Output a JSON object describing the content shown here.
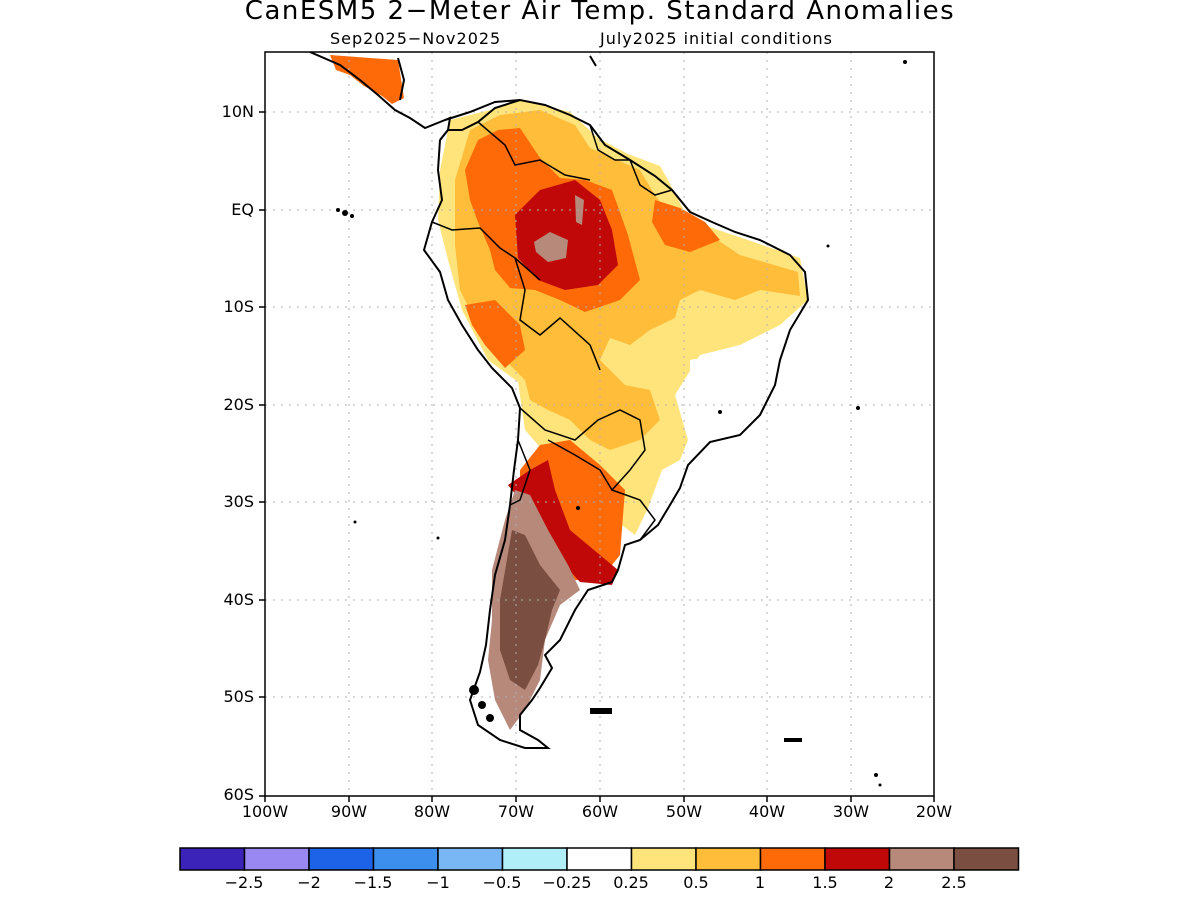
{
  "title": "CanESM5 2−Meter Air Temp. Standard Anomalies",
  "subtitle_left": "Sep2025−Nov2025",
  "subtitle_right": "July2025 initial conditions",
  "lat_labels": [
    "10N",
    "EQ",
    "10S",
    "20S",
    "30S",
    "40S",
    "50S",
    "60S"
  ],
  "lon_labels": [
    "100W",
    "90W",
    "80W",
    "70W",
    "60W",
    "50W",
    "40W",
    "30W",
    "20W"
  ],
  "colorbar": {
    "labels": [
      "−2.5",
      "−2",
      "−1.5",
      "−1",
      "−0.5",
      "−0.25",
      "0.25",
      "0.5",
      "1",
      "1.5",
      "2",
      "2.5"
    ],
    "colors": [
      "#3b22b8",
      "#9a88f2",
      "#1c63e8",
      "#3d8fee",
      "#78b6f4",
      "#b0eef8",
      "#ffffff",
      "#ffe47c",
      "#ffbd3a",
      "#ff6a08",
      "#c00808",
      "#b6897b",
      "#7a4e40"
    ]
  },
  "map": {
    "region": "South America",
    "variable": "2-Meter Air Temperature Standard Anomaly",
    "lon_range": [
      -100,
      -20
    ],
    "lat_range": [
      -60,
      15
    ],
    "grid": true
  }
}
